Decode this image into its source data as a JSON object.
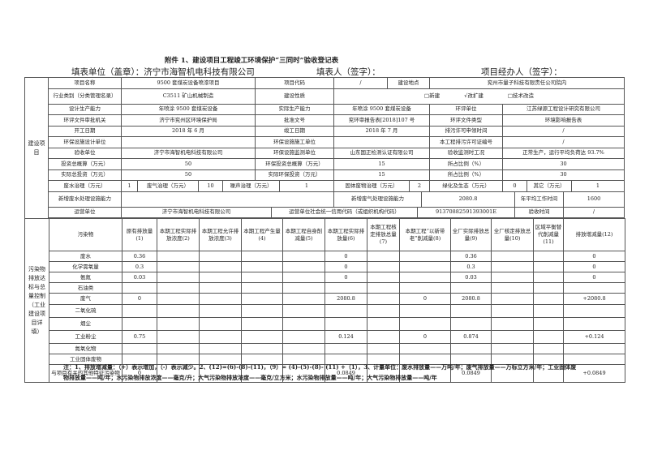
{
  "title": "附件 1、建设项目工程竣工环境保护“三同时”验收登记表",
  "fill_unit": "填表单位（盖章）：济宁市海智机电科技有限公司",
  "filler": "填表人（签字）：",
  "manager": "项目经办人（签字）：",
  "project": {
    "section_label": "建设项目",
    "name_label": "项目名称",
    "name": "9500 套煤炭设备喷漆项目",
    "code_label": "项目代码",
    "code": "/",
    "site_label": "建设地点",
    "site": "兖州市量子科技有限责任公司院内",
    "industry_label": "行业类别（分类管理名录）",
    "industry": "C3511 矿山机械制造",
    "nature_label": "建设性质",
    "nature_new": "□新建",
    "nature_expand": "√改扩建",
    "nature_tech": "□技术改造",
    "design_cap_label": "设计生产能力",
    "design_cap": "年喷涂 9500 套煤炭设备",
    "actual_cap_label": "实际生产能力",
    "actual_cap": "年喷涂 9500 套煤炭设备",
    "eia_unit_label": "环评单位",
    "eia_unit": "江苏绿源工程设计研究有限公司",
    "approval_org_label": "环评文件审批机关",
    "approval_org": "济宁市兖州区环境保护局",
    "approval_no_label": "批准文号",
    "approval_no": "兖环审报告表[2018]107 号",
    "eia_type_label": "环评文件类型",
    "eia_type": "环境影响报告表",
    "start_label": "开工日期",
    "start": "2018 年 6 月",
    "finish_label": "竣工日期",
    "finish": "2018 年 7 月",
    "permit_time_label": "排污许可申领时间",
    "permit_time": "/",
    "design_unit_label": "环保设施设计单位",
    "design_unit": "",
    "build_unit_label": "环保设施施工单位",
    "build_unit": "",
    "permit_no_label": "本工程排污许可证编号",
    "permit_no": "/",
    "accept_unit_label": "验收单位",
    "accept_unit": "济宁市海智机电科技有限公司",
    "monitor_unit_label": "环保设施监测单位",
    "monitor_unit": "山东国正检测认证有限公司",
    "condition_label": "验收监测时工况",
    "condition": "正常生产，运行平均负荷达 93.7%",
    "invest_label": "投资总概算（万元）",
    "invest": "50",
    "env_invest_label": "环保投资总概算（万元）",
    "env_invest": "15",
    "ratio_label": "所占比例（%）",
    "ratio": "30",
    "actual_invest_label": "实际总投资（万元）",
    "actual_invest": "50",
    "actual_env_invest_label": "实际环保投资（万元）",
    "actual_env_invest": "15",
    "actual_ratio_label": "所占比例（%）",
    "actual_ratio": "30",
    "water_label": "废水治理（万元）",
    "water": "1",
    "gas_label": "废气治理（万元）",
    "gas": "10",
    "noise_label": "噪声治理（万元）",
    "noise": "1",
    "solid_label": "固体废物治理（万元）",
    "solid": "2",
    "green_label": "绿化及生态（万元）",
    "green": "0",
    "other_label": "其它（万元）",
    "other": "1",
    "new_water_label": "新增废水处理设施能力",
    "new_water": "",
    "new_gas_label": "新增废气处理设施能力",
    "new_gas": "2080.8",
    "work_hours_label": "年平均工作时间",
    "work_hours": "1600",
    "operator_label": "运营单位",
    "operator": "济宁市海智机电科技有限公司",
    "credit_label": "运营单位社会统一信用代码（或组织机构代码）",
    "credit": "91370882591393001E",
    "accept_time_label": "验收时间",
    "accept_time": "/"
  },
  "pollutants": {
    "section_label": "污染物排放达标与总量控制（工业建设项目详填）",
    "headers": [
      "污染物",
      "原有排放量(1)",
      "本期工程实际排放浓度(2)",
      "本期工程允许排放浓度(3)",
      "本期工程产生量(4)",
      "本期工程自身削减量(5)",
      "本期工程实际排放量(6)",
      "本期工程核定排放总量(7)",
      "本期工程“以新带老”削减量(8)",
      "全厂实际排放总量(9)",
      "全厂核定排放总量(10)",
      "区域平衡替代削减量(11)",
      "排放增减量(12)"
    ],
    "rows": [
      [
        "废水",
        "0.36",
        "",
        "",
        "",
        "",
        "0",
        "",
        "",
        "0.36",
        "",
        "",
        "0"
      ],
      [
        "化学需氧量",
        "0.3",
        "",
        "",
        "",
        "",
        "0",
        "",
        "",
        "0.3",
        "",
        "",
        "0"
      ],
      [
        "氨氮",
        "0.03",
        "",
        "",
        "",
        "",
        "0",
        "",
        "",
        "0.03",
        "",
        "",
        "0"
      ],
      [
        "石油类",
        "",
        "",
        "",
        "",
        "",
        "",
        "",
        "",
        "",
        "",
        "",
        ""
      ],
      [
        "废气",
        "0",
        "",
        "",
        "",
        "",
        "2080.8",
        "",
        "0",
        "2080.8",
        "",
        "",
        "+2080.8"
      ],
      [
        "二氧化硫",
        "",
        "",
        "",
        "",
        "",
        "",
        "",
        "",
        "",
        "",
        "",
        ""
      ],
      [
        "烟尘",
        "",
        "",
        "",
        "",
        "",
        "",
        "",
        "",
        "",
        "",
        "",
        ""
      ],
      [
        "工业粉尘",
        "0.75",
        "",
        "",
        "",
        "",
        "0.124",
        "",
        "0",
        "0.874",
        "",
        "",
        "+0.124"
      ],
      [
        "氮氧化物",
        "",
        "",
        "",
        "",
        "",
        "",
        "",
        "",
        "",
        "",
        "",
        ""
      ],
      [
        "工业固体废物",
        "",
        "",
        "",
        "",
        "",
        "",
        "",
        "",
        "",
        "",
        "",
        ""
      ],
      [
        "与项目有关的其他特征污染物",
        "0",
        "",
        "",
        "",
        "",
        "0.0849",
        "",
        "",
        "0.0849",
        "",
        "",
        "+0.0849"
      ]
    ]
  },
  "notes": [
    "注：1、排放增减量：（+）表示增加，（-）表示减少。2、(12)=(6)-(8)-(11)，（9）= (4)-(5)-(8)- (11) +（1），3、计量单位：废水排放量——万吨/年；废气排放量——万标立方米/年；工业固体废",
    "物排放量——吨/年；水污染物排放浓度——毫克/升；大气污染物排放浓度——毫克/立方米；水污染物排放量——吨/年；大气污染物排放量——吨/年"
  ]
}
